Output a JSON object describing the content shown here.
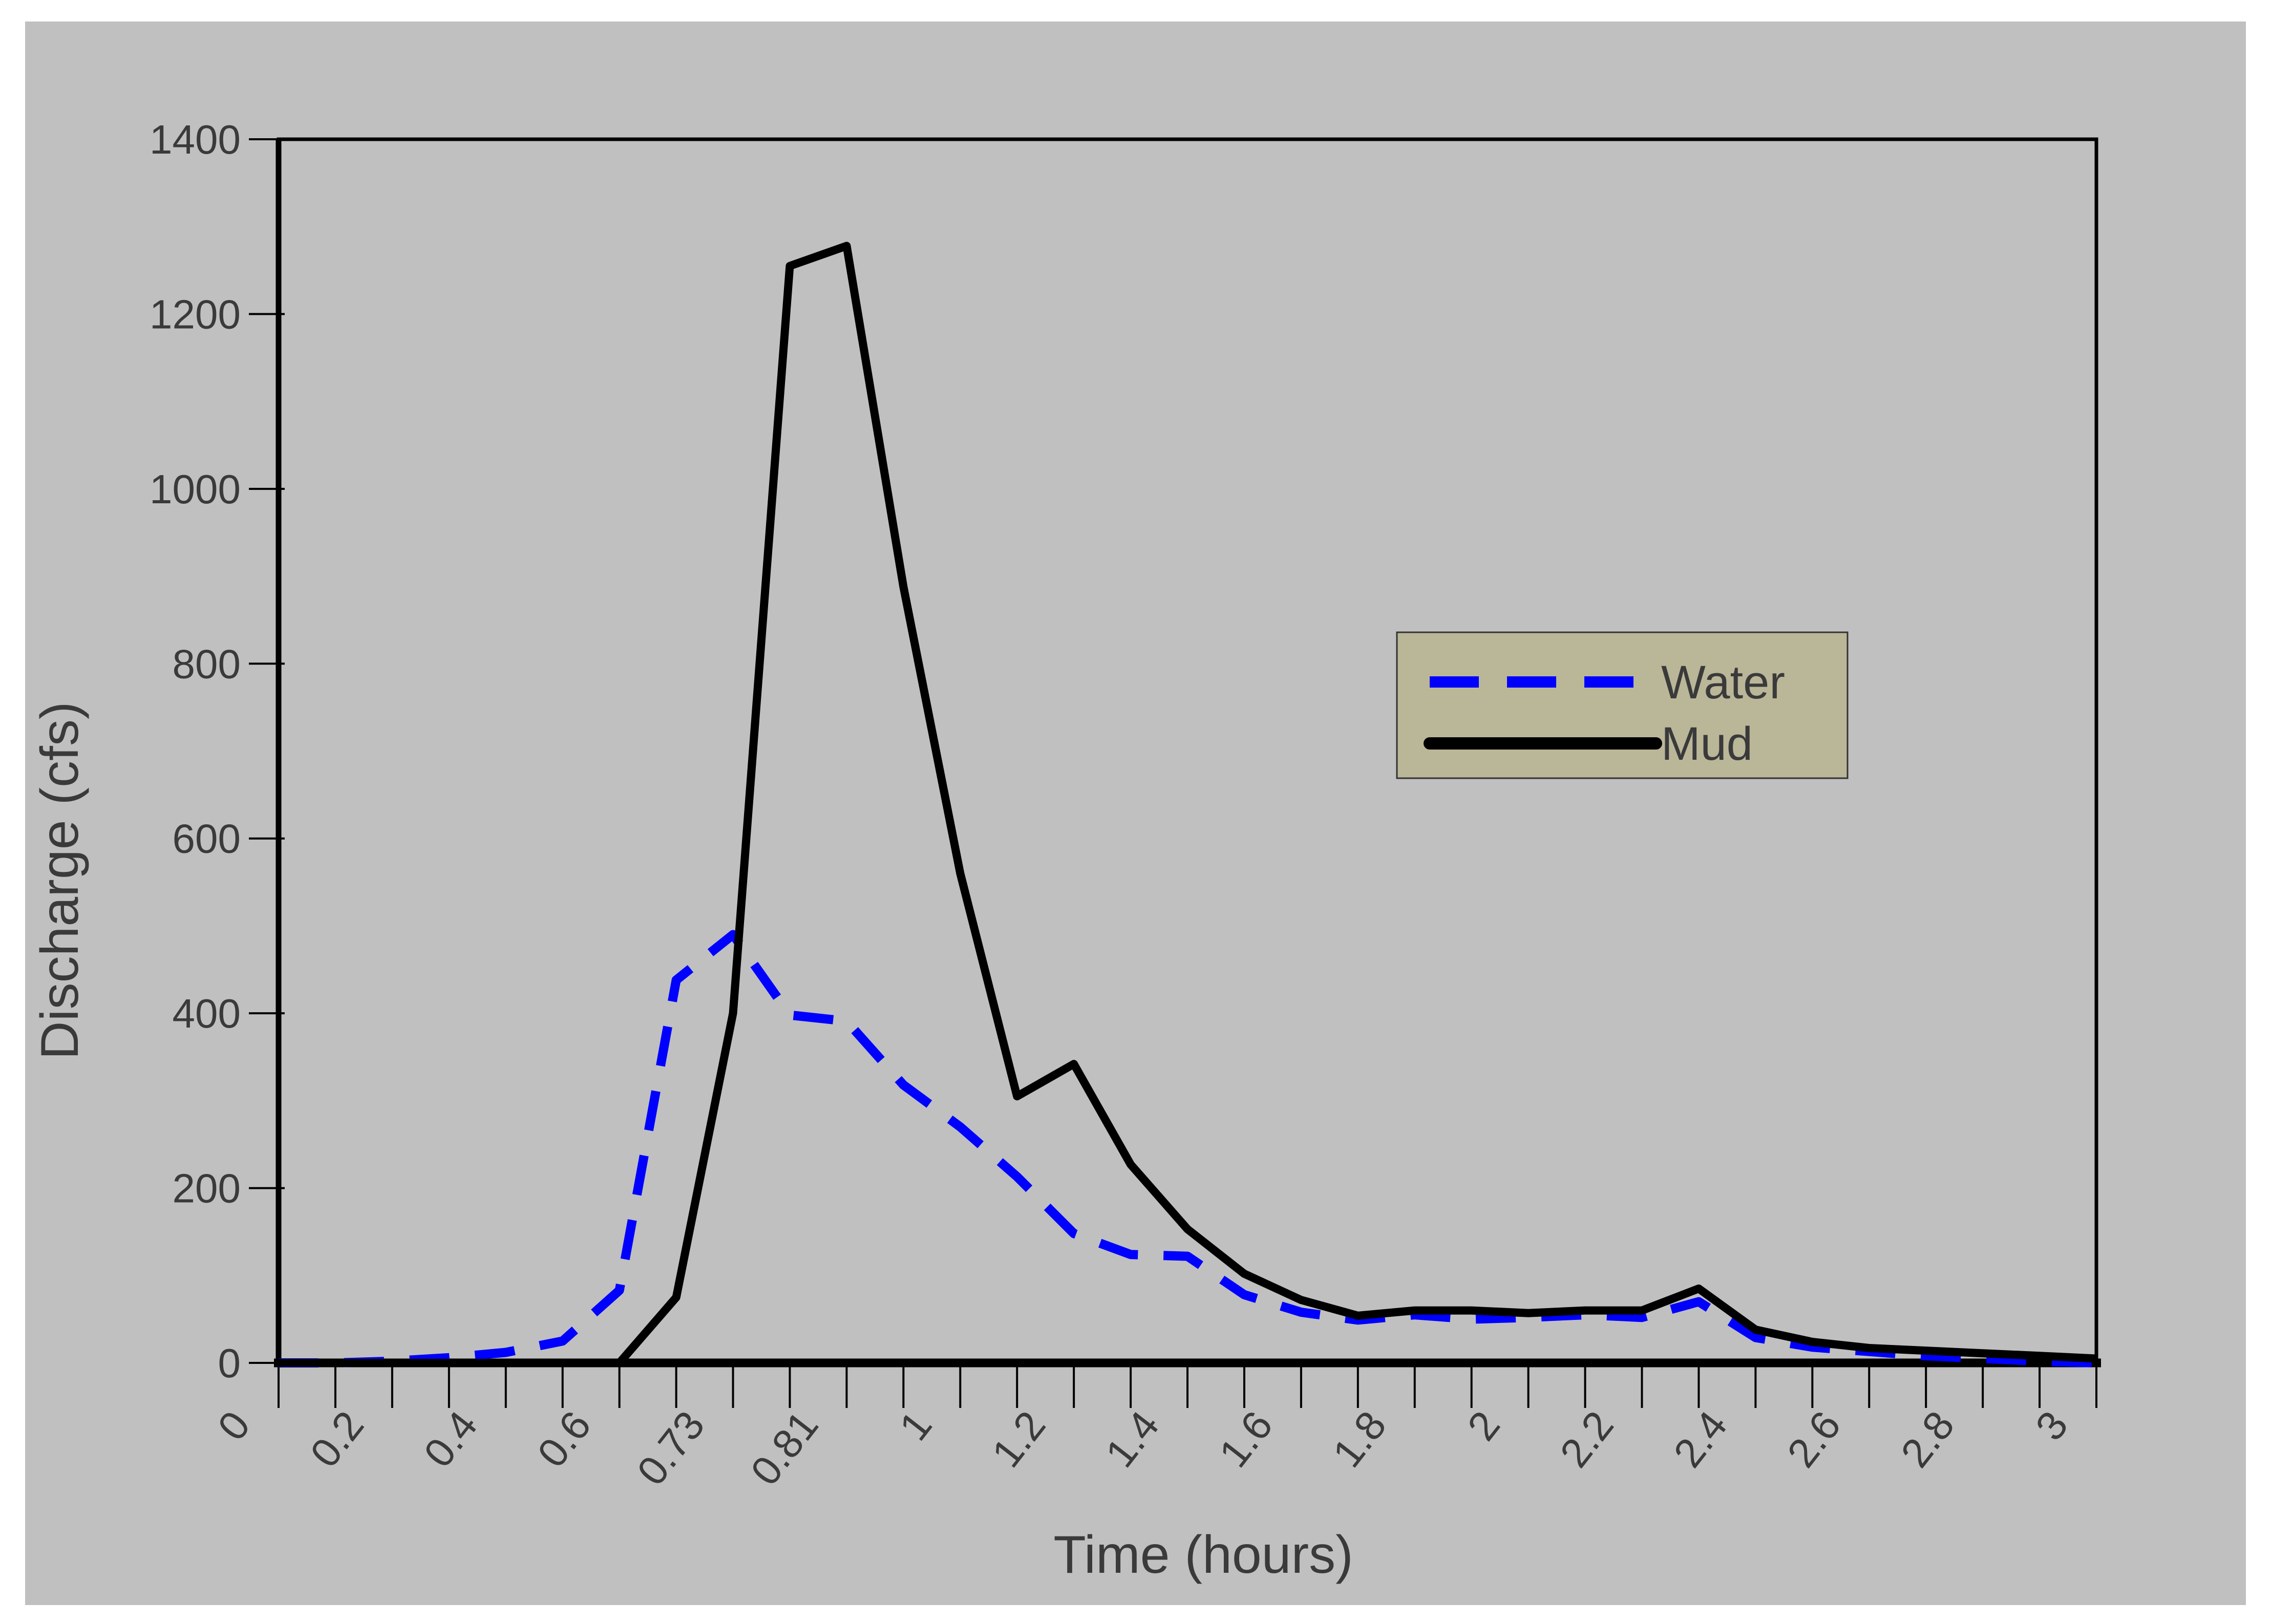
{
  "figure": {
    "page_background": "#ffffff",
    "chart_background": "#c0c0c0",
    "text_color": "#3a3a3a",
    "axis_color": "#000000"
  },
  "chart_data": {
    "type": "line",
    "title": "",
    "xlabel": "Time (hours)",
    "ylabel": "Discharge (cfs)",
    "axis_type": "category",
    "ylim": [
      0,
      1400
    ],
    "yticks": [
      0,
      200,
      400,
      600,
      800,
      1000,
      1200,
      1400
    ],
    "grid": false,
    "label_every_nth_category": 2,
    "visible_x_labels": [
      "0",
      "0.2",
      "0.4",
      "0.6",
      "0.73",
      "0.81",
      "1",
      "1.2",
      "1.4",
      "1.6",
      "1.8",
      "2",
      "2.2",
      "2.4",
      "2.6",
      "2.8",
      "3"
    ],
    "categories": [
      "0",
      "0.1",
      "0.2",
      "0.3",
      "0.4",
      "0.5",
      "0.6",
      "0.7",
      "0.73",
      "0.77",
      "0.81",
      "0.9",
      "1",
      "1.1",
      "1.2",
      "1.3",
      "1.4",
      "1.5",
      "1.6",
      "1.7",
      "1.8",
      "1.9",
      "2",
      "2.1",
      "2.2",
      "2.3",
      "2.4",
      "2.5",
      "2.6",
      "2.7",
      "2.8",
      "2.9",
      "3"
    ],
    "series": [
      {
        "name": "Water",
        "color": "#0000fe",
        "line_style": "dashed",
        "line_width": 18,
        "values": [
          0,
          0,
          2,
          6,
          12,
          25,
          83,
          438,
          490,
          398,
          391,
          318,
          270,
          213,
          148,
          124,
          122,
          78,
          58,
          49,
          55,
          50,
          52,
          55,
          52,
          70,
          29,
          18,
          13,
          8,
          5,
          2,
          0
        ]
      },
      {
        "name": "Mud",
        "color": "#000000",
        "line_style": "solid",
        "line_width": 16,
        "values": [
          0,
          0,
          0,
          0,
          0,
          0,
          0,
          75,
          400,
          1255,
          1278,
          888,
          560,
          305,
          342,
          227,
          153,
          102,
          72,
          54,
          60,
          60,
          57,
          60,
          60,
          85,
          38,
          24,
          17,
          14,
          11,
          8,
          5
        ]
      }
    ],
    "legend": {
      "position": "middle-right",
      "background": "#bab698",
      "border_color": "#333333",
      "entries": [
        "Water",
        "Mud"
      ]
    }
  }
}
